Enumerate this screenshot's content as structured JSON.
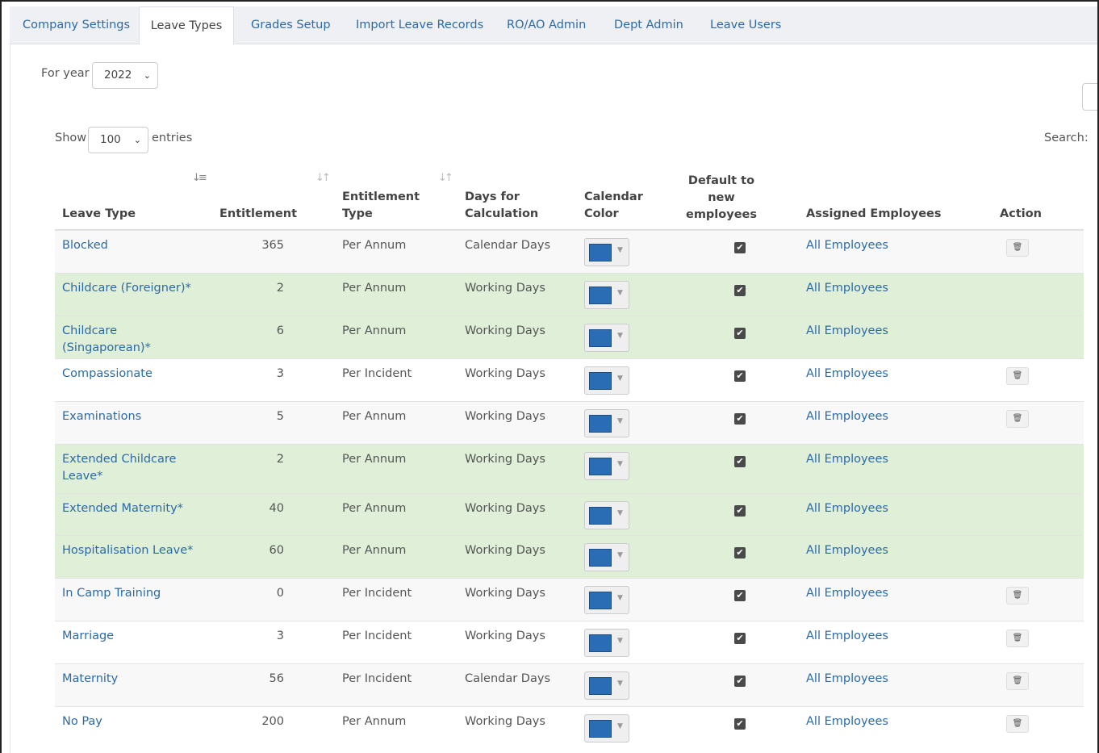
{
  "tabs": [
    {
      "label": "Company Settings",
      "active": false
    },
    {
      "label": "Leave Types",
      "active": true
    },
    {
      "label": "Grades Setup",
      "active": false
    },
    {
      "label": "Import Leave Records",
      "active": false
    },
    {
      "label": "RO/AO Admin",
      "active": false
    },
    {
      "label": "Dept Admin",
      "active": false
    },
    {
      "label": "Leave Users",
      "active": false
    }
  ],
  "filters": {
    "year_label": "For year",
    "year_value": "2022",
    "show_label": "Show",
    "entries_value": "100",
    "entries_label": "entries",
    "search_label": "Search:"
  },
  "table": {
    "headers": {
      "leave_type": "Leave Type",
      "entitlement": "Entitlement",
      "entitlement_type": "Entitlement Type",
      "days_for_calculation": "Days for Calculation",
      "calendar_color": "Calendar Color",
      "default_new": "Default to new employees",
      "assigned": "Assigned Employees",
      "action": "Action"
    },
    "rows": [
      {
        "leave_type": "Blocked",
        "entitlement": "365",
        "entitlement_type": "Per Annum",
        "days": "Calendar Days",
        "color": "#2a6db5",
        "default": true,
        "assigned": "All Employees",
        "system": false,
        "deletable": true
      },
      {
        "leave_type": "Childcare (Foreigner)*",
        "entitlement": "2",
        "entitlement_type": "Per Annum",
        "days": "Working Days",
        "color": "#2a6db5",
        "default": true,
        "assigned": "All Employees",
        "system": true,
        "deletable": false
      },
      {
        "leave_type": "Childcare (Singaporean)*",
        "entitlement": "6",
        "entitlement_type": "Per Annum",
        "days": "Working Days",
        "color": "#2a6db5",
        "default": true,
        "assigned": "All Employees",
        "system": true,
        "deletable": false
      },
      {
        "leave_type": "Compassionate",
        "entitlement": "3",
        "entitlement_type": "Per Incident",
        "days": "Working Days",
        "color": "#2a6db5",
        "default": true,
        "assigned": "All Employees",
        "system": false,
        "deletable": true
      },
      {
        "leave_type": "Examinations",
        "entitlement": "5",
        "entitlement_type": "Per Annum",
        "days": "Working Days",
        "color": "#2a6db5",
        "default": true,
        "assigned": "All Employees",
        "system": false,
        "deletable": true
      },
      {
        "leave_type": "Extended Childcare Leave*",
        "entitlement": "2",
        "entitlement_type": "Per Annum",
        "days": "Working Days",
        "color": "#2a6db5",
        "default": true,
        "assigned": "All Employees",
        "system": true,
        "deletable": false
      },
      {
        "leave_type": "Extended Maternity*",
        "entitlement": "40",
        "entitlement_type": "Per Annum",
        "days": "Working Days",
        "color": "#2a6db5",
        "default": true,
        "assigned": "All Employees",
        "system": true,
        "deletable": false
      },
      {
        "leave_type": "Hospitalisation Leave*",
        "entitlement": "60",
        "entitlement_type": "Per Annum",
        "days": "Working Days",
        "color": "#2a6db5",
        "default": true,
        "assigned": "All Employees",
        "system": true,
        "deletable": false
      },
      {
        "leave_type": "In Camp Training",
        "entitlement": "0",
        "entitlement_type": "Per Incident",
        "days": "Working Days",
        "color": "#2a6db5",
        "default": true,
        "assigned": "All Employees",
        "system": false,
        "deletable": true
      },
      {
        "leave_type": "Marriage",
        "entitlement": "3",
        "entitlement_type": "Per Incident",
        "days": "Working Days",
        "color": "#2a6db5",
        "default": true,
        "assigned": "All Employees",
        "system": false,
        "deletable": true
      },
      {
        "leave_type": "Maternity",
        "entitlement": "56",
        "entitlement_type": "Per Incident",
        "days": "Calendar Days",
        "color": "#2a6db5",
        "default": true,
        "assigned": "All Employees",
        "system": false,
        "deletable": true
      },
      {
        "leave_type": "No Pay",
        "entitlement": "200",
        "entitlement_type": "Per Annum",
        "days": "Working Days",
        "color": "#2a6db5",
        "default": true,
        "assigned": "All Employees",
        "system": false,
        "deletable": true
      }
    ]
  }
}
